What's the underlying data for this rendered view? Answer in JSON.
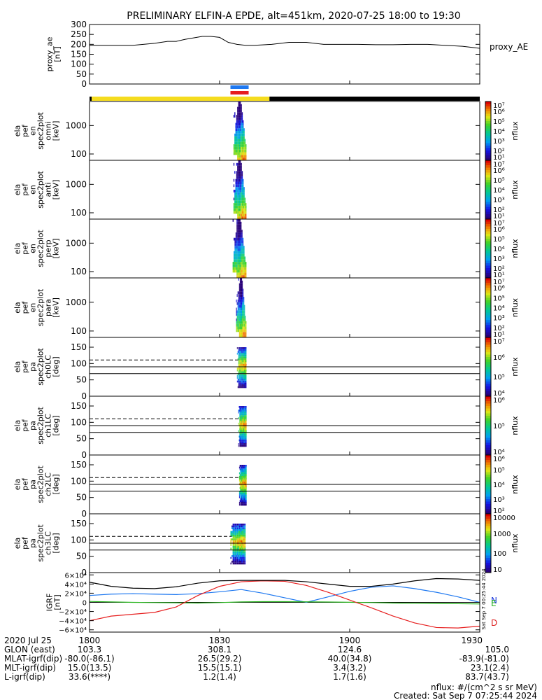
{
  "title": "PRELIMINARY ELFIN-A EPDE, alt=451km, 2020-07-25 18:00 to 19:30",
  "colors": {
    "ae_line": "#000000",
    "bar_yellow": "#f5dc1e",
    "bar_black": "#000000",
    "marker_blue": "#1e78f0",
    "marker_red": "#e61e1e",
    "igrf_n": "#1e3cdc",
    "igrf_e": "#28b41e",
    "igrf_d": "#dc1e1e",
    "igrf_total": "#000000"
  },
  "footer": {
    "nflux_units": "nflux: #/(cm^2 s sr MeV)",
    "created": "Created: Sat Sep  7 07:25:44 2024",
    "stamp": "Sat Sep  7 00:25:44 2024"
  },
  "time_axis": {
    "row_labels": [
      "2020 Jul 25",
      "GLON (east)",
      "MLAT-igrf(dip)",
      "MLT-igrf(dip)",
      "L-igrf(dip)"
    ],
    "ticks": [
      {
        "t": 0,
        "label": "1800",
        "glon": "103.3",
        "mlat": "-80.0(-86.1)",
        "mlt": "15.0(13.5)",
        "l": "33.6(****)"
      },
      {
        "t": 30,
        "label": "1830",
        "glon": "308.1",
        "mlat": "26.5(29.2)",
        "mlt": "15.5(15.1)",
        "l": "1.2(1.4)"
      },
      {
        "t": 60,
        "label": "1900",
        "glon": "124.6",
        "mlat": "40.0(34.8)",
        "mlt": "3.4(3.2)",
        "l": "1.7(1.6)"
      },
      {
        "t": 90,
        "label": "1930",
        "glon": "105.0",
        "mlat": "-83.9(-81.0)",
        "mlt": "23.1(2.4)",
        "l": "83.7(43.7)"
      }
    ]
  },
  "status_bar": {
    "segments": [
      {
        "from": 0,
        "to": 0.5,
        "color": "black"
      },
      {
        "from": 0.5,
        "to": 41.5,
        "color": "yellow"
      },
      {
        "from": 41.5,
        "to": 90,
        "color": "black"
      }
    ],
    "markers": [
      {
        "from": 32.5,
        "to": 36.7,
        "color": "blue"
      },
      {
        "from": 32.5,
        "to": 36.7,
        "color": "red"
      }
    ]
  },
  "chart_data": [
    {
      "type": "line",
      "id": "proxy-ae",
      "ylabel": [
        "proxy_ae",
        "[nT]"
      ],
      "right_label": "proxy_AE",
      "ylim": [
        0,
        300
      ],
      "yticks": [
        0,
        50,
        100,
        150,
        200,
        250,
        300
      ],
      "x": [
        0,
        5,
        10,
        15,
        18,
        20,
        22,
        26,
        28,
        30,
        32,
        34,
        36,
        38,
        42,
        46,
        50,
        54,
        58,
        62,
        66,
        70,
        74,
        78,
        82,
        86,
        90
      ],
      "values": [
        195,
        195,
        195,
        205,
        215,
        215,
        225,
        240,
        240,
        235,
        210,
        200,
        195,
        195,
        200,
        210,
        210,
        200,
        200,
        200,
        198,
        198,
        200,
        200,
        195,
        190,
        180
      ]
    },
    {
      "type": "heatmap",
      "id": "spec-omni",
      "ylabel": [
        "ela",
        "pef",
        "en",
        "spec2plot",
        "omni",
        "[keV]"
      ],
      "yscale": "log",
      "ylim": [
        60,
        7000
      ],
      "yticks": [
        100,
        1000
      ],
      "ytick_labels": [
        "100",
        "1000"
      ],
      "colorbar": {
        "label": "nflux",
        "scale": "log",
        "range": [
          10,
          10000000
        ],
        "ticks": [
          "10¹",
          "10²",
          "10³",
          "10⁴",
          "10⁵",
          "10⁶",
          "10⁷"
        ]
      },
      "t_range": [
        33.2,
        36.2
      ],
      "peak_keV": 80
    },
    {
      "type": "heatmap",
      "id": "spec-anti",
      "ylabel": [
        "ela",
        "pef",
        "en",
        "spec2plot",
        "anti",
        "[keV]"
      ],
      "yscale": "log",
      "ylim": [
        60,
        7000
      ],
      "yticks": [
        100,
        1000
      ],
      "ytick_labels": [
        "100",
        "1000"
      ],
      "colorbar": {
        "label": "nflux",
        "scale": "log",
        "range": [
          10,
          10000000
        ],
        "ticks": [
          "10¹",
          "10²",
          "10³",
          "10⁴",
          "10⁵",
          "10⁶",
          "10⁷"
        ]
      },
      "t_range": [
        33.2,
        36.2
      ],
      "peak_keV": 80
    },
    {
      "type": "heatmap",
      "id": "spec-perp",
      "ylabel": [
        "ela",
        "pef",
        "en",
        "spec2plot",
        "perp",
        "[keV]"
      ],
      "yscale": "log",
      "ylim": [
        60,
        7000
      ],
      "yticks": [
        100,
        1000
      ],
      "ytick_labels": [
        "100",
        "1000"
      ],
      "colorbar": {
        "label": "nflux",
        "scale": "log",
        "range": [
          10,
          10000000
        ],
        "ticks": [
          "10¹",
          "10²",
          "10³",
          "10⁴",
          "10⁵",
          "10⁶",
          "10⁷"
        ]
      },
      "t_range": [
        33.0,
        36.2
      ],
      "peak_keV": 80
    },
    {
      "type": "heatmap",
      "id": "spec-para",
      "ylabel": [
        "ela",
        "pef",
        "en",
        "spec2plot",
        "para",
        "[keV]"
      ],
      "yscale": "log",
      "ylim": [
        60,
        7000
      ],
      "yticks": [
        100,
        1000
      ],
      "ytick_labels": [
        "100",
        "1000"
      ],
      "colorbar": {
        "label": "nflux",
        "scale": "log",
        "range": [
          10,
          10000000
        ],
        "ticks": [
          "10¹",
          "10²",
          "10³",
          "10⁴",
          "10⁵",
          "10⁶",
          "10⁷"
        ]
      },
      "t_range": [
        33.8,
        36.2
      ],
      "peak_keV": 80
    },
    {
      "type": "heatmap",
      "id": "pa-ch0",
      "ylabel": [
        "ela",
        "pef",
        "pa",
        "spec2plot",
        "ch0LC",
        "[deg]"
      ],
      "yscale": "linear",
      "ylim": [
        0,
        180
      ],
      "yticks": [
        0,
        50,
        100,
        150
      ],
      "ytick_labels": [
        "0",
        "50",
        "100",
        "150"
      ],
      "lc_lines": {
        "dashed": 111,
        "solid": [
          90,
          69
        ]
      },
      "colorbar": {
        "label": "nflux",
        "scale": "log",
        "range": [
          1000,
          10000000
        ],
        "ticks": [
          "10⁴",
          "10⁵",
          "10⁶",
          "10⁷"
        ]
      },
      "t_range": [
        34.0,
        36.2
      ]
    },
    {
      "type": "heatmap",
      "id": "pa-ch1",
      "ylabel": [
        "ela",
        "pef",
        "pa",
        "spec2plot",
        "ch1LC",
        "[deg]"
      ],
      "yscale": "linear",
      "ylim": [
        0,
        180
      ],
      "yticks": [
        0,
        50,
        100,
        150
      ],
      "ytick_labels": [
        "0",
        "50",
        "100",
        "150"
      ],
      "lc_lines": {
        "dashed": 111,
        "solid": [
          90,
          69
        ]
      },
      "colorbar": {
        "label": "nflux",
        "scale": "log",
        "range": [
          1000,
          1000000
        ],
        "ticks": [
          "10⁴",
          "10⁵",
          "10⁶"
        ]
      },
      "t_range": [
        34.3,
        36.2
      ]
    },
    {
      "type": "heatmap",
      "id": "pa-ch2",
      "ylabel": [
        "ela",
        "pef",
        "pa",
        "spec2plot",
        "ch2LC",
        "[deg]"
      ],
      "yscale": "linear",
      "ylim": [
        0,
        180
      ],
      "yticks": [
        0,
        50,
        100,
        150
      ],
      "ytick_labels": [
        "0",
        "50",
        "100",
        "150"
      ],
      "lc_lines": {
        "dashed": 111,
        "solid": [
          90,
          69
        ]
      },
      "colorbar": {
        "label": "nflux",
        "scale": "log",
        "range": [
          100,
          1000000
        ],
        "ticks": [
          "10²",
          "10³",
          "10⁴",
          "10⁵",
          "10⁶"
        ]
      },
      "t_range": [
        34.5,
        36.2
      ]
    },
    {
      "type": "heatmap",
      "id": "pa-ch3",
      "ylabel": [
        "ela",
        "pef",
        "pa",
        "spec2plot",
        "ch3LC",
        "[deg]"
      ],
      "yscale": "linear",
      "ylim": [
        0,
        180
      ],
      "yticks": [
        0,
        50,
        100,
        150
      ],
      "ytick_labels": [
        "0",
        "50",
        "100",
        "150"
      ],
      "lc_lines": {
        "dashed": 111,
        "solid": [
          90,
          69
        ]
      },
      "colorbar": {
        "label": "nflux",
        "scale": "log",
        "range": [
          10,
          10000
        ],
        "ticks": [
          "10",
          "100",
          "1000",
          "10000"
        ]
      },
      "t_range": [
        32.5,
        36.0
      ]
    },
    {
      "type": "line",
      "id": "igrf",
      "ylabel": [
        "IGRF",
        "[nT]"
      ],
      "ylim": [
        -65000,
        65000
      ],
      "yticks": [
        -60000,
        -40000,
        -20000,
        0,
        20000,
        40000,
        60000
      ],
      "ytick_labels": [
        "−6×10⁴",
        "−4×10⁴",
        "−2×10⁴",
        "0",
        "2×10⁴",
        "4×10⁴",
        "6×10⁴"
      ],
      "x": [
        0,
        5,
        10,
        15,
        20,
        25,
        30,
        35,
        40,
        45,
        50,
        55,
        60,
        65,
        70,
        75,
        80,
        85,
        90
      ],
      "series": [
        {
          "name": "N",
          "color": "blue",
          "values": [
            15000,
            18000,
            19000,
            18000,
            17000,
            19000,
            23000,
            28000,
            20000,
            10000,
            0,
            12000,
            24000,
            33000,
            36000,
            30000,
            22000,
            12000,
            0
          ]
        },
        {
          "name": "E",
          "color": "green",
          "values": [
            2000,
            1000,
            0,
            -500,
            -1000,
            -1500,
            -500,
            1000,
            1500,
            1500,
            1200,
            800,
            200,
            -500,
            -1500,
            -2000,
            -2500,
            -3000,
            -3500
          ]
        },
        {
          "name": "D",
          "color": "red",
          "values": [
            -40000,
            -30000,
            -26000,
            -22000,
            -10000,
            15000,
            35000,
            45000,
            47000,
            46000,
            37000,
            22000,
            5000,
            -12000,
            -30000,
            -45000,
            -55000,
            -56000,
            -52000
          ]
        },
        {
          "name": "",
          "color": "black",
          "values": [
            44000,
            35000,
            31000,
            30000,
            34000,
            42000,
            47000,
            48000,
            48000,
            48000,
            45000,
            40000,
            35000,
            35000,
            40000,
            47000,
            52000,
            51000,
            48000
          ]
        }
      ],
      "right_labels": [
        "N",
        "E",
        "D"
      ]
    }
  ]
}
